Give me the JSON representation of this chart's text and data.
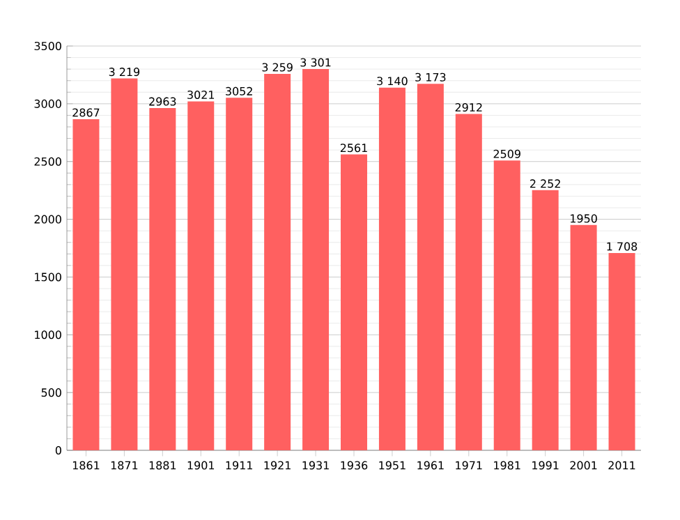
{
  "chart_data": {
    "type": "bar",
    "categories": [
      "1861",
      "1871",
      "1881",
      "1901",
      "1911",
      "1921",
      "1931",
      "1936",
      "1951",
      "1961",
      "1971",
      "1981",
      "1991",
      "2001",
      "2011"
    ],
    "values": [
      2867,
      3219,
      2963,
      3021,
      3052,
      3259,
      3301,
      2561,
      3140,
      3173,
      2912,
      2509,
      2252,
      1950,
      1708
    ],
    "value_labels": [
      "2867",
      "3 219",
      "2963",
      "3021",
      "3052",
      "3 259",
      "3 301",
      "2561",
      "3 140",
      "3 173",
      "2912",
      "2509",
      "2 252",
      "1950",
      "1 708"
    ],
    "color": "#ff6060",
    "ylim": [
      0,
      3500
    ],
    "yticks": [
      0,
      500,
      1000,
      1500,
      2000,
      2500,
      3000,
      3500
    ],
    "grid": "y"
  }
}
